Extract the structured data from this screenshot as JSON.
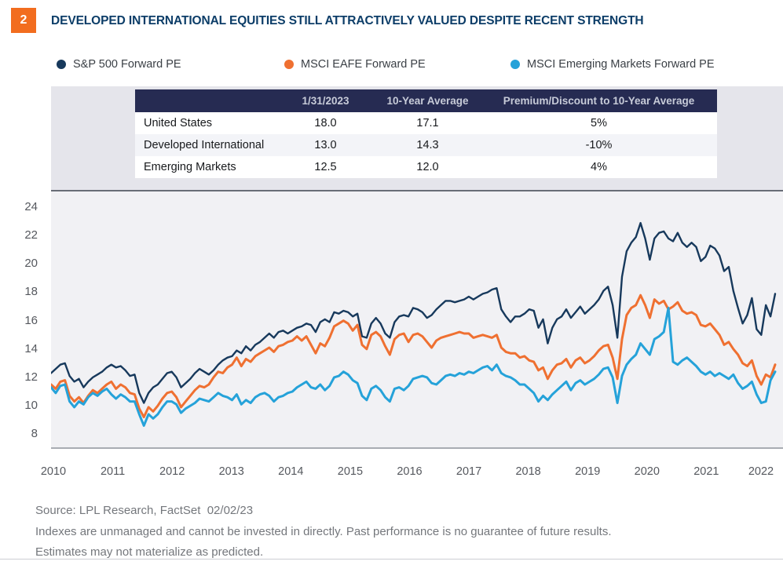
{
  "figure_number": "2",
  "title": "DEVELOPED INTERNATIONAL EQUITIES STILL ATTRACTIVELY VALUED DESPITE RECENT STRENGTH",
  "table": {
    "headers": [
      "",
      "1/31/2023",
      "10-Year Average",
      "Premium/Discount to 10-Year Average"
    ],
    "rows": [
      [
        "United States",
        "18.0",
        "17.1",
        "5%"
      ],
      [
        "Developed International",
        "13.0",
        "14.3",
        "-10%"
      ],
      [
        "Emerging Markets",
        "12.5",
        "12.0",
        "4%"
      ]
    ]
  },
  "footer": {
    "source": "Source: LPL Research, FactSet  02/02/23",
    "disclaimer1": "Indexes are unmanaged and cannot be invested in directly. Past performance is no guarantee of future results.",
    "disclaimer2": "Estimates may not materialize as predicted."
  },
  "accent_colors": {
    "figure_badge": "#f26d1f",
    "title_navy": "#0c3d68",
    "table_header_bg": "#262b52",
    "plot_background": "#f1f1f4",
    "panel_background": "#e5e5eb"
  },
  "chart_data": {
    "type": "line",
    "x_unit": "month",
    "x_start": "2010-01",
    "x_end": "2023-01",
    "grid": false,
    "legend_position": "top",
    "ylim": [
      8,
      24
    ],
    "yticks": [
      8,
      10,
      12,
      14,
      16,
      18,
      20,
      22,
      24
    ],
    "xticks": [
      "2010",
      "2011",
      "2012",
      "2013",
      "2014",
      "2015",
      "2016",
      "2017",
      "2018",
      "2019",
      "2020",
      "2021",
      "2022"
    ],
    "series": [
      {
        "name": "S&P 500 Forward PE",
        "color": "#17395c",
        "width": 2.4,
        "values": [
          12.4,
          12.7,
          13.0,
          13.1,
          12.2,
          11.8,
          12.0,
          11.4,
          11.8,
          12.1,
          12.3,
          12.5,
          12.8,
          13.0,
          12.8,
          12.9,
          12.6,
          12.2,
          12.3,
          11.0,
          10.3,
          11.0,
          11.4,
          11.6,
          12.0,
          12.4,
          12.5,
          12.1,
          11.4,
          11.7,
          12.0,
          12.4,
          12.7,
          12.5,
          12.3,
          12.6,
          13.0,
          13.3,
          13.5,
          13.6,
          14.0,
          13.8,
          14.3,
          14.0,
          14.4,
          14.6,
          14.9,
          15.2,
          14.9,
          15.3,
          15.4,
          15.2,
          15.4,
          15.6,
          15.7,
          15.9,
          15.8,
          15.3,
          16.0,
          16.2,
          16.0,
          16.7,
          16.6,
          16.8,
          16.7,
          16.4,
          16.6,
          15.0,
          14.9,
          15.9,
          16.3,
          15.9,
          15.2,
          14.9,
          16.0,
          16.4,
          16.5,
          16.4,
          17.0,
          16.9,
          16.7,
          16.3,
          16.5,
          16.9,
          17.2,
          17.5,
          17.5,
          17.4,
          17.5,
          17.6,
          17.8,
          17.6,
          17.8,
          18.0,
          18.1,
          18.3,
          18.4,
          16.9,
          16.4,
          16.0,
          16.4,
          16.4,
          16.6,
          16.9,
          16.8,
          15.6,
          16.2,
          14.5,
          15.6,
          16.2,
          16.4,
          16.9,
          16.3,
          16.7,
          17.1,
          16.6,
          16.9,
          17.2,
          17.6,
          18.2,
          18.5,
          17.2,
          14.9,
          19.2,
          21.0,
          21.6,
          22.0,
          23.0,
          21.9,
          20.4,
          21.9,
          22.3,
          22.4,
          21.9,
          21.7,
          22.3,
          21.6,
          21.3,
          21.6,
          21.3,
          20.3,
          20.6,
          21.4,
          21.2,
          20.7,
          19.6,
          19.9,
          18.2,
          17.0,
          15.9,
          16.5,
          17.7,
          15.5,
          15.1,
          17.2,
          16.4,
          18.0
        ]
      },
      {
        "name": "MSCI EAFE Forward PE",
        "color": "#ef7031",
        "width": 3,
        "values": [
          11.6,
          11.3,
          11.8,
          11.9,
          10.8,
          10.4,
          10.7,
          10.3,
          10.8,
          11.2,
          11.0,
          11.3,
          11.6,
          11.8,
          11.3,
          11.6,
          11.4,
          11.0,
          10.9,
          9.9,
          9.3,
          10.0,
          9.7,
          10.1,
          10.6,
          11.0,
          11.1,
          10.7,
          10.0,
          10.4,
          10.8,
          11.2,
          11.5,
          11.4,
          11.6,
          12.1,
          12.5,
          12.4,
          12.8,
          13.0,
          13.5,
          12.9,
          13.4,
          13.2,
          13.6,
          13.8,
          14.0,
          14.2,
          13.9,
          14.3,
          14.4,
          14.6,
          14.7,
          15.0,
          14.7,
          15.0,
          14.4,
          13.8,
          14.5,
          14.3,
          14.9,
          15.7,
          15.9,
          16.1,
          15.9,
          15.4,
          15.8,
          14.4,
          14.1,
          15.1,
          15.3,
          15.0,
          14.3,
          13.7,
          14.8,
          15.1,
          15.2,
          14.6,
          15.1,
          15.2,
          15.0,
          14.6,
          14.2,
          14.7,
          14.9,
          15.0,
          15.1,
          15.2,
          15.3,
          15.2,
          15.2,
          14.9,
          15.0,
          15.1,
          15.0,
          14.9,
          15.1,
          14.2,
          13.9,
          13.8,
          13.8,
          13.5,
          13.6,
          13.3,
          13.2,
          12.6,
          12.8,
          12.0,
          12.6,
          13.0,
          13.1,
          13.4,
          12.8,
          13.3,
          13.5,
          13.1,
          13.3,
          13.6,
          14.0,
          14.3,
          14.4,
          13.5,
          12.0,
          14.8,
          16.5,
          17.0,
          17.2,
          17.9,
          17.2,
          16.3,
          17.6,
          17.3,
          17.5,
          16.9,
          17.1,
          17.4,
          16.8,
          16.6,
          16.7,
          16.5,
          15.8,
          15.7,
          15.9,
          15.5,
          15.1,
          14.4,
          14.6,
          14.1,
          13.7,
          13.1,
          12.9,
          13.3,
          12.2,
          11.6,
          12.3,
          12.1,
          13.0
        ]
      },
      {
        "name": "MSCI Emerging Markets Forward PE",
        "color": "#25a2d9",
        "width": 3,
        "values": [
          11.4,
          11.0,
          11.5,
          11.6,
          10.4,
          10.0,
          10.4,
          10.2,
          10.7,
          11.0,
          10.8,
          11.1,
          11.3,
          10.9,
          10.6,
          10.9,
          10.7,
          10.4,
          10.4,
          9.5,
          8.7,
          9.5,
          9.2,
          9.5,
          10.0,
          10.4,
          10.4,
          10.2,
          9.6,
          9.9,
          10.1,
          10.3,
          10.6,
          10.5,
          10.4,
          10.7,
          11.0,
          10.8,
          10.7,
          10.5,
          10.9,
          10.2,
          10.5,
          10.3,
          10.7,
          10.9,
          11.0,
          10.8,
          10.4,
          10.7,
          10.8,
          11.0,
          11.1,
          11.4,
          11.6,
          11.8,
          11.4,
          11.3,
          11.6,
          11.2,
          11.5,
          12.1,
          12.2,
          12.5,
          12.3,
          11.9,
          11.7,
          10.8,
          10.5,
          11.3,
          11.5,
          11.2,
          10.7,
          10.4,
          11.3,
          11.4,
          11.2,
          11.5,
          12.0,
          12.1,
          12.2,
          12.1,
          11.7,
          11.6,
          11.9,
          12.2,
          12.3,
          12.2,
          12.4,
          12.3,
          12.5,
          12.4,
          12.6,
          12.8,
          12.9,
          12.6,
          13.0,
          12.4,
          12.2,
          12.1,
          11.9,
          11.6,
          11.6,
          11.3,
          11.0,
          10.4,
          10.8,
          10.5,
          10.9,
          11.2,
          11.5,
          11.8,
          11.2,
          11.7,
          11.9,
          11.6,
          11.8,
          12.0,
          12.3,
          12.7,
          12.8,
          12.1,
          10.3,
          12.2,
          13.0,
          13.4,
          13.7,
          14.5,
          14.1,
          13.7,
          14.8,
          15.0,
          15.3,
          17.0,
          13.2,
          13.0,
          13.3,
          13.5,
          13.2,
          12.9,
          12.5,
          12.3,
          12.5,
          12.2,
          12.4,
          12.2,
          12.0,
          12.3,
          11.7,
          11.3,
          11.5,
          11.8,
          10.9,
          10.3,
          10.4,
          11.9,
          12.5
        ]
      }
    ]
  }
}
